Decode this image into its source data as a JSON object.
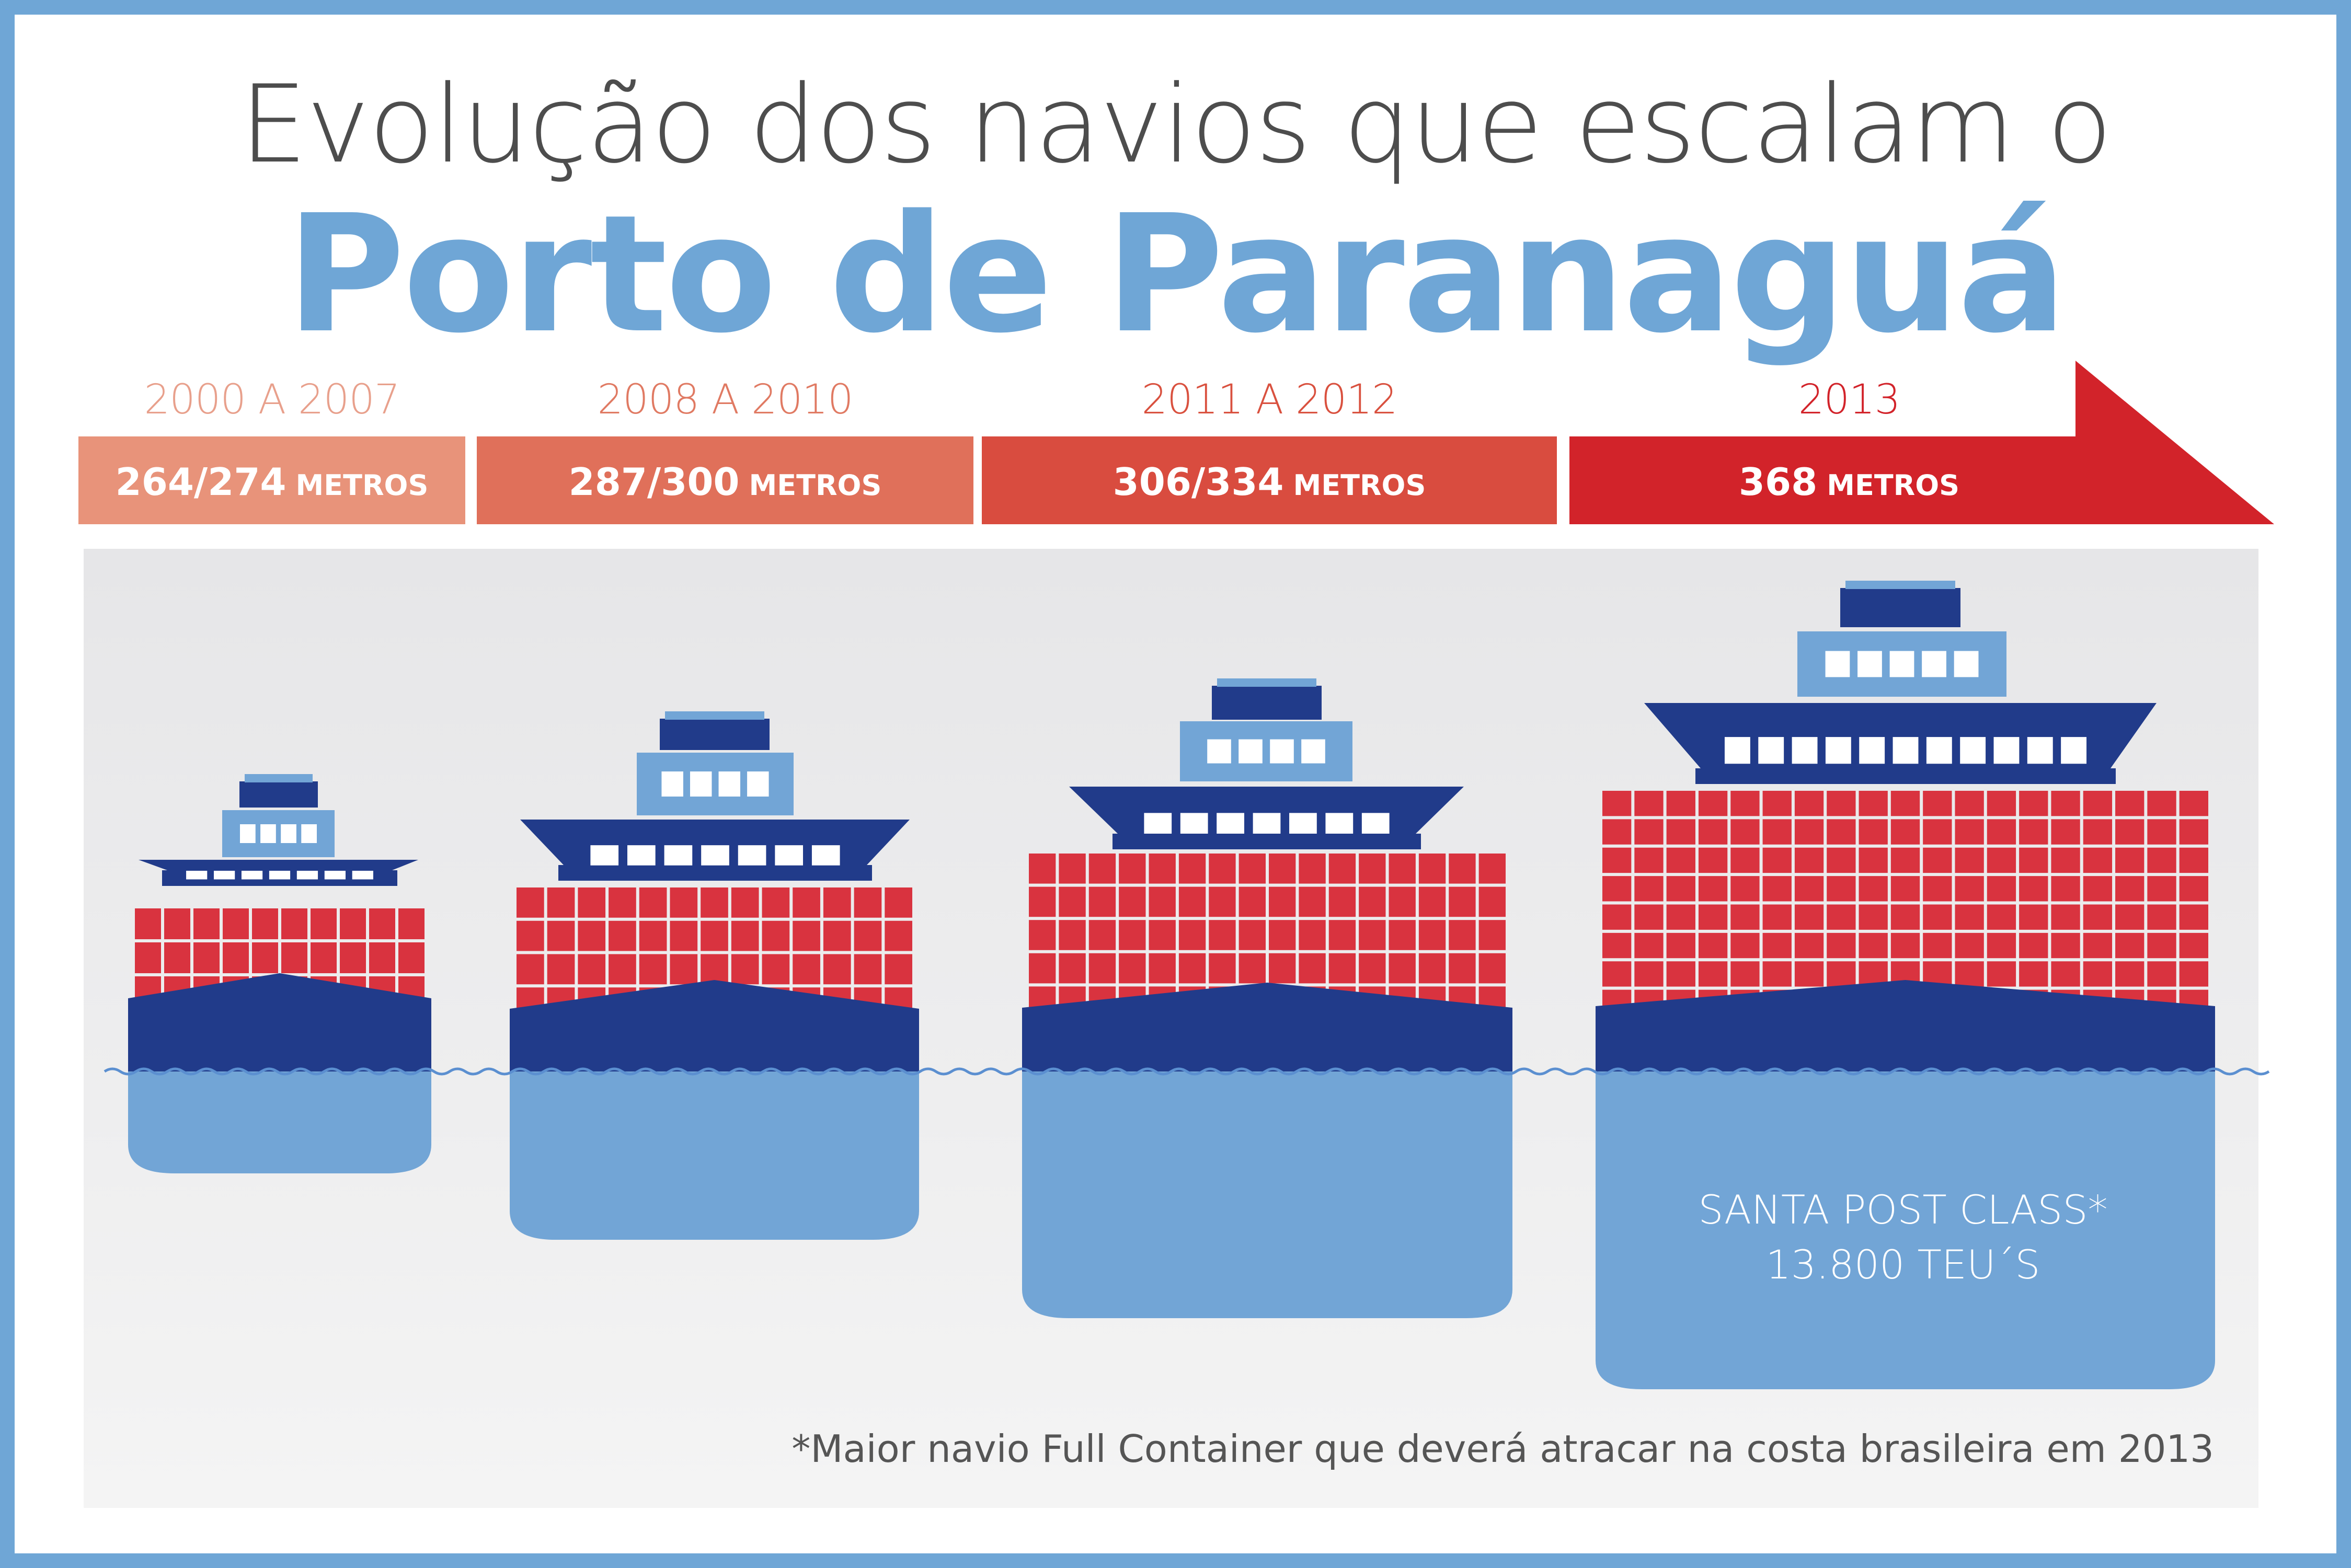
{
  "title": {
    "line1": "Evolução dos navios que escalam o",
    "line2": "Porto de Paranaguá"
  },
  "timeline": [
    {
      "period": "2000 A 2007",
      "length": "264/274",
      "unit": "METROS",
      "color": "#e8937a",
      "text_color": "#e8a08c"
    },
    {
      "period": "2008 A 2010",
      "length": "287/300",
      "unit": "METROS",
      "color": "#e0705a",
      "text_color": "#e07a63"
    },
    {
      "period": "2011 A 2012",
      "length": "306/334",
      "unit": "METROS",
      "color": "#d94c3f",
      "text_color": "#d9513f"
    },
    {
      "period": "2013",
      "length": "368",
      "unit": "METROS",
      "color": "#d2232a",
      "text_color": "#d2232a"
    }
  ],
  "ship_caption": {
    "line1": "SANTA POST CLASS*",
    "line2": "13.800 TEU´S"
  },
  "footnote": "*Maior navio Full Container que deverá atracar na costa brasileira em 2013",
  "colors": {
    "frame": "#6fa6d6",
    "hull_dark": "#213b8a",
    "hull_light": "#72a5d6",
    "container": "#d9333f",
    "window": "#ffffff",
    "panel": "#ebebeb"
  }
}
